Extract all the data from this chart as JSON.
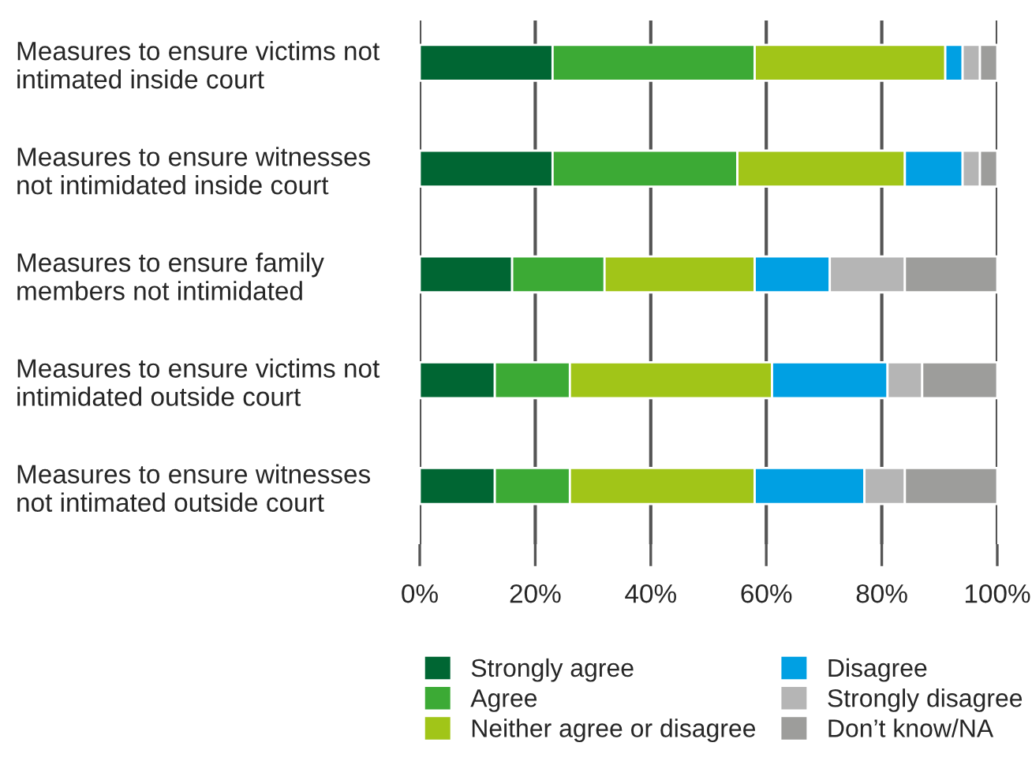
{
  "chart_data": {
    "type": "bar",
    "orientation": "horizontal",
    "stacked": true,
    "categories": [
      "Measures to ensure victims not\nintimated inside court",
      "Measures to ensure witnesses\nnot intimidated inside court",
      "Measures to ensure family\nmembers not intimidated",
      "Measures to ensure victims not\nintimidated outside court",
      "Measures to ensure witnesses\nnot intimated outside court"
    ],
    "series": [
      {
        "name": "Strongly agree",
        "color": "#006633",
        "values": [
          23,
          23,
          16,
          13,
          13
        ]
      },
      {
        "name": "Agree",
        "color": "#3caa35",
        "values": [
          35,
          32,
          16,
          13,
          13
        ]
      },
      {
        "name": "Neither agree or disagree",
        "color": "#a1c518",
        "values": [
          33,
          29,
          26,
          35,
          32
        ]
      },
      {
        "name": "Disagree",
        "color": "#00a0e3",
        "values": [
          3,
          10,
          13,
          20,
          19
        ]
      },
      {
        "name": "Strongly disagree",
        "color": "#b5b5b5",
        "values": [
          3,
          3,
          13,
          6,
          7
        ]
      },
      {
        "name": "Don’t know/NA",
        "color": "#9d9d9b",
        "values": [
          3,
          3,
          16,
          13,
          16
        ]
      }
    ],
    "xlim": [
      0,
      100
    ],
    "xticks": [
      {
        "value": 0,
        "label": "0%"
      },
      {
        "value": 20,
        "label": "20%"
      },
      {
        "value": 40,
        "label": "40%"
      },
      {
        "value": 60,
        "label": "60%"
      },
      {
        "value": 80,
        "label": "80%"
      },
      {
        "value": 100,
        "label": "100%"
      }
    ],
    "grid": "x",
    "legend": "bottom"
  }
}
